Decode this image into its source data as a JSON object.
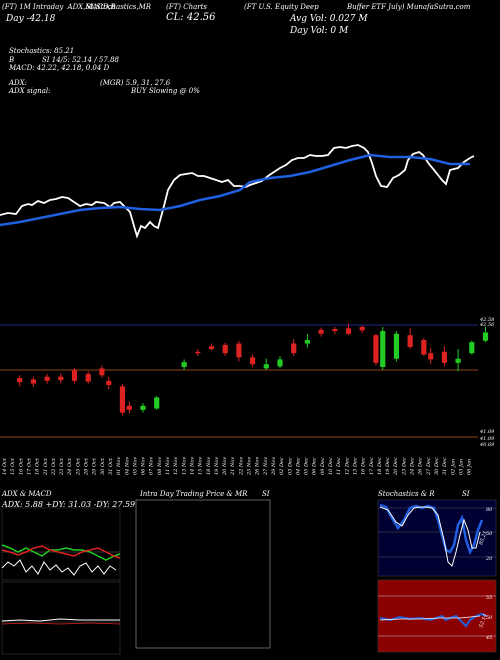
{
  "header": {
    "row1": [
      "(FT) 1M Intraday",
      "ADX,MACD,B",
      "SI,Stochastics,MR",
      "(FT) Charts",
      "(FT U.S. Equity Deep",
      "Buffer ETF July) MunafaSutra.com"
    ],
    "avg_vol": "Avg Vol: 0.027 M",
    "day_vol": "Day Vol: 0   M",
    "close": "CL: 42.56",
    "day_change": "Day  -42.18"
  },
  "indicators": {
    "stoch": "Stochastics: 85.21",
    "si_label": "B",
    "si": "SI 14/5: 52.14  / 57.88",
    "macd": "MACD: 42.22, 42.18, 0.04  D",
    "adx_label": "ADX:",
    "adx": "(MGR) 5.9, 31, 27.6",
    "adx_signal_label": "ADX  signal:",
    "signal": "BUY Slowing @ 0%"
  },
  "colors": {
    "price_line": "#ffffff",
    "ma_line": "#1f5fe0",
    "up": "#22cc22",
    "down": "#dd2222",
    "ref_line": "#8b4513"
  },
  "price_axis": [
    "42.58",
    "42.56",
    "41.09",
    "41.09",
    "40.69"
  ],
  "chart_data": {
    "type": "candlestick",
    "dates": [
      "14 Oct",
      "15 Oct",
      "16 Oct",
      "17 Oct",
      "18 Oct",
      "21 Oct",
      "22 Oct",
      "23 Oct",
      "24 Oct",
      "25 Oct",
      "28 Oct",
      "29 Oct",
      "30 Oct",
      "31 Oct",
      "01 Nov",
      "04 Nov",
      "05 Nov",
      "06 Nov",
      "07 Nov",
      "08 Nov",
      "11 Nov",
      "12 Nov",
      "13 Nov",
      "14 Nov",
      "15 Nov",
      "18 Nov",
      "19 Nov",
      "20 Nov",
      "21 Nov",
      "22 Nov",
      "25 Nov",
      "26 Nov",
      "27 Nov",
      "29 Nov",
      "02 Dec",
      "03 Dec",
      "04 Dec",
      "05 Dec",
      "06 Dec",
      "09 Dec",
      "10 Dec",
      "11 Dec",
      "12 Dec",
      "13 Dec",
      "16 Dec",
      "17 Dec",
      "18 Dec",
      "19 Dec",
      "20 Dec",
      "23 Dec",
      "24 Dec",
      "26 Dec",
      "27 Dec",
      "30 Dec",
      "31 Dec",
      "02 Jan",
      "03 Jan",
      "06 Jan"
    ],
    "candles": [
      {
        "i": 2,
        "o": 41.78,
        "c": 41.72,
        "h": 41.82,
        "l": 41.66
      },
      {
        "i": 4,
        "o": 41.76,
        "c": 41.7,
        "h": 41.8,
        "l": 41.65
      },
      {
        "i": 6,
        "o": 41.8,
        "c": 41.74,
        "h": 41.84,
        "l": 41.7
      },
      {
        "i": 8,
        "o": 41.8,
        "c": 41.75,
        "h": 41.85,
        "l": 41.7
      },
      {
        "i": 10,
        "o": 41.9,
        "c": 41.74,
        "h": 41.93,
        "l": 41.7
      },
      {
        "i": 12,
        "o": 41.84,
        "c": 41.73,
        "h": 41.88,
        "l": 41.7
      },
      {
        "i": 14,
        "o": 41.92,
        "c": 41.82,
        "h": 41.96,
        "l": 41.78
      },
      {
        "i": 15,
        "o": 41.74,
        "c": 41.68,
        "h": 41.8,
        "l": 41.62
      },
      {
        "i": 17,
        "o": 41.66,
        "c": 41.28,
        "h": 41.7,
        "l": 41.24
      },
      {
        "i": 18,
        "o": 41.38,
        "c": 41.32,
        "h": 41.44,
        "l": 41.27
      },
      {
        "i": 20,
        "o": 41.32,
        "c": 41.38,
        "h": 41.42,
        "l": 41.28
      },
      {
        "i": 22,
        "o": 41.34,
        "c": 41.5,
        "h": 41.52,
        "l": 41.32
      },
      {
        "i": 26,
        "o": 41.94,
        "c": 42.01,
        "h": 42.05,
        "l": 41.9
      },
      {
        "i": 28,
        "o": 42.16,
        "c": 42.14,
        "h": 42.2,
        "l": 42.1
      },
      {
        "i": 30,
        "o": 42.24,
        "c": 42.2,
        "h": 42.28,
        "l": 42.18
      },
      {
        "i": 32,
        "o": 42.26,
        "c": 42.14,
        "h": 42.29,
        "l": 42.1
      },
      {
        "i": 34,
        "o": 42.28,
        "c": 42.08,
        "h": 42.32,
        "l": 42.02
      },
      {
        "i": 36,
        "o": 42.08,
        "c": 41.98,
        "h": 42.12,
        "l": 41.94
      },
      {
        "i": 38,
        "o": 41.92,
        "c": 41.98,
        "h": 42.06,
        "l": 41.9
      },
      {
        "i": 40,
        "o": 41.95,
        "c": 42.05,
        "h": 42.1,
        "l": 41.92
      },
      {
        "i": 42,
        "o": 42.28,
        "c": 42.14,
        "h": 42.34,
        "l": 42.1
      },
      {
        "i": 44,
        "o": 42.28,
        "c": 42.33,
        "h": 42.42,
        "l": 42.22
      },
      {
        "i": 46,
        "o": 42.48,
        "c": 42.42,
        "h": 42.51,
        "l": 42.38
      },
      {
        "i": 48,
        "o": 42.49,
        "c": 42.46,
        "h": 42.52,
        "l": 42.42
      },
      {
        "i": 50,
        "o": 42.5,
        "c": 42.42,
        "h": 42.57,
        "l": 42.4
      },
      {
        "i": 52,
        "o": 42.52,
        "c": 42.47,
        "h": 42.54,
        "l": 42.43
      },
      {
        "i": 54,
        "o": 42.4,
        "c": 42.0,
        "h": 42.42,
        "l": 41.96
      },
      {
        "i": 55,
        "o": 41.94,
        "c": 42.46,
        "h": 42.52,
        "l": 41.9
      },
      {
        "i": 57,
        "o": 42.06,
        "c": 42.42,
        "h": 42.46,
        "l": 42.02
      },
      {
        "i": 59,
        "o": 42.4,
        "c": 42.23,
        "h": 42.5,
        "l": 42.2
      },
      {
        "i": 61,
        "o": 42.33,
        "c": 42.12,
        "h": 42.36,
        "l": 42.1
      },
      {
        "i": 62,
        "o": 42.14,
        "c": 42.05,
        "h": 42.22,
        "l": 41.98
      },
      {
        "i": 64,
        "o": 42.16,
        "c": 42.0,
        "h": 42.24,
        "l": 41.95
      },
      {
        "i": 66,
        "o": 42.0,
        "c": 42.06,
        "h": 42.2,
        "l": 41.88
      },
      {
        "i": 68,
        "o": 42.14,
        "c": 42.3,
        "h": 42.32,
        "l": 42.12
      },
      {
        "i": 70,
        "o": 42.32,
        "c": 42.44,
        "h": 42.52,
        "l": 42.3
      }
    ],
    "ylim": [
      41.0,
      42.62
    ]
  }
}
